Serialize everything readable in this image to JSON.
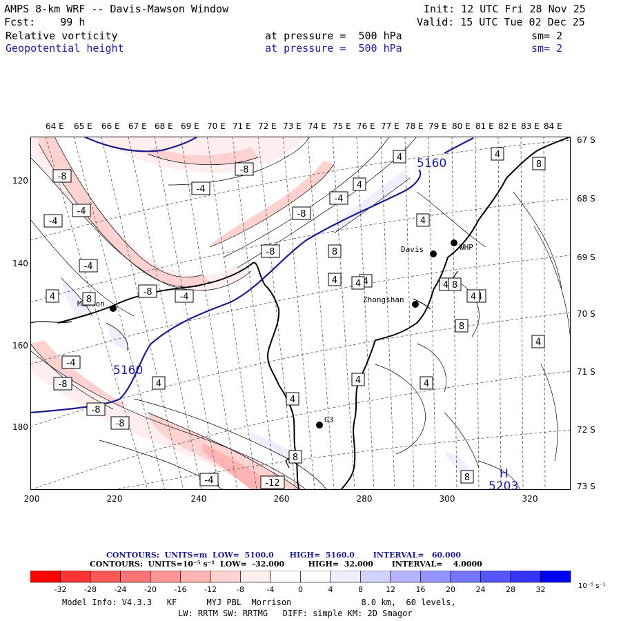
{
  "header": {
    "title": "AMPS 8-km WRF -- Davis-Mawson Window",
    "init": "Init: 12 UTC Fri 28 Nov 25",
    "fcst": "Fcst:    99 h",
    "valid": "Valid: 15 UTC Tue 02 Dec 25",
    "field1": "Relative vorticity",
    "field1_level": "at pressure =  500 hPa",
    "field1_sm": "sm= 2",
    "field2": "Geopotential height",
    "field2_level": "at pressure =  500 hPa",
    "field2_sm": "sm= 2"
  },
  "axes": {
    "lon_labels": [
      "64 E",
      "65 E",
      "66 E",
      "67 E",
      "68 E",
      "69 E",
      "70 E",
      "71 E",
      "72 E",
      "73 E",
      "74 E",
      "75 E",
      "76 E",
      "77 E",
      "78 E",
      "79 E",
      "80 E",
      "81 E",
      "82 E",
      "83 E",
      "84 E"
    ],
    "lat_labels": [
      "67 S",
      "68 S",
      "69 S",
      "70 S",
      "71 S",
      "72 S",
      "73 S"
    ],
    "x_ticks": [
      "200",
      "220",
      "240",
      "260",
      "280",
      "300",
      "320"
    ],
    "y_ticks": [
      "120",
      "140",
      "160",
      "180"
    ]
  },
  "stations": [
    {
      "name": "Mawson"
    },
    {
      "name": "Davis"
    },
    {
      "name": "WHP"
    },
    {
      "name": "Zhongshan"
    },
    {
      "name": "G3"
    }
  ],
  "contour_labels": [
    "-8",
    "-8",
    "-4",
    "-4",
    "-4",
    "4",
    "4",
    "-4",
    "-8",
    "8",
    "-8",
    "-8",
    "-4",
    "-4",
    "-8",
    "-4",
    "-8",
    "-8",
    "-4",
    "-12",
    "8",
    "8",
    "4",
    "8",
    "4",
    "4",
    "4",
    "4",
    "4",
    "4",
    "4",
    "8",
    "4",
    "4",
    "4",
    "8",
    "4",
    "4",
    "4",
    "8",
    "5160",
    "5160",
    "H",
    "5203"
  ],
  "contour_info": {
    "line1_label": "CONTOURS:  UNITS=m  LOW=  5100.0      HIGH=  5160.0       INTERVAL=   60.000",
    "line2_label": "CONTOURS:  UNITS=10⁻⁵ s⁻¹  LOW=  -32.000         HIGH=  32.000       INTERVAL=    4.0000"
  },
  "colorbar": {
    "labels": [
      "-32",
      "-28",
      "-24",
      "-20",
      "-16",
      "-12",
      "-8",
      "-4",
      "0",
      "4",
      "8",
      "12",
      "16",
      "20",
      "24",
      "28",
      "32"
    ],
    "unit": "10⁻⁵ s⁻¹",
    "colors": [
      "#ff0000",
      "#ff3535",
      "#ff5656",
      "#ff7575",
      "#ff9494",
      "#ffb3b3",
      "#ffd2d2",
      "#ffeeee",
      "#ffffff",
      "#ffffff",
      "#eeeeff",
      "#d2d2ff",
      "#b3b3ff",
      "#9494ff",
      "#7575ff",
      "#5656ff",
      "#3535ff",
      "#0000ff"
    ]
  },
  "footer": {
    "line1": "Model Info: V4.3.3   KF      MYJ PBL  Morrison              8.0 km,  60 levels,",
    "line2": "LW: RRTM SW: RRTMG   DIFF: simple KM: 2D Smagor"
  }
}
